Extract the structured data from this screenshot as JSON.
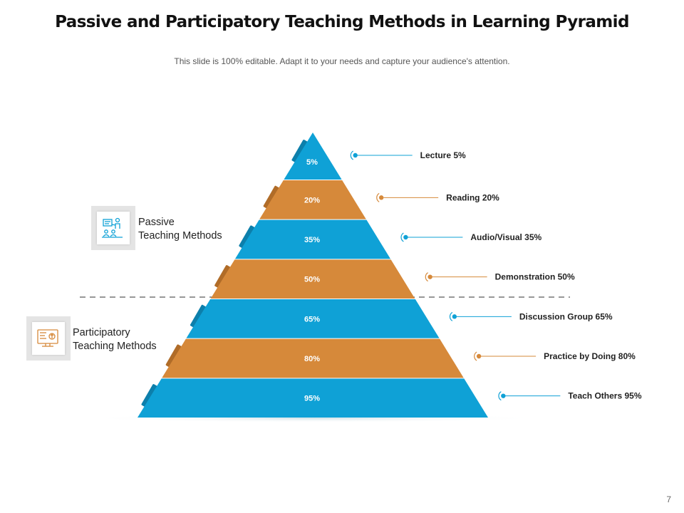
{
  "title": "Passive and Participatory Teaching Methods in Learning Pyramid",
  "subtitle": "This slide is 100% editable. Adapt it to your needs and capture your audience's attention.",
  "colors": {
    "blue": "#0fa1d6",
    "orange": "#d6893a",
    "dark_blue": "#0c7fab",
    "dark_orange": "#b06c28"
  },
  "groups": {
    "passive": {
      "line1": "Passive",
      "line2": "Teaching Methods",
      "icon": "classroom-teaching-icon"
    },
    "participatory": {
      "line1": "Participatory",
      "line2": "Teaching Methods",
      "icon": "online-learning-icon"
    }
  },
  "levels": [
    {
      "pct": "5%",
      "label": "Lecture 5%",
      "color": "blue"
    },
    {
      "pct": "20%",
      "label": "Reading 20%",
      "color": "orange"
    },
    {
      "pct": "35%",
      "label": "Audio/Visual 35%",
      "color": "blue"
    },
    {
      "pct": "50%",
      "label": "Demonstration  50%",
      "color": "orange"
    },
    {
      "pct": "65%",
      "label": "Discussion  Group 65%",
      "color": "blue"
    },
    {
      "pct": "80%",
      "label": "Practice by Doing 80%",
      "color": "orange"
    },
    {
      "pct": "95%",
      "label": "Teach Others 95%",
      "color": "blue"
    }
  ],
  "page_number": "7"
}
